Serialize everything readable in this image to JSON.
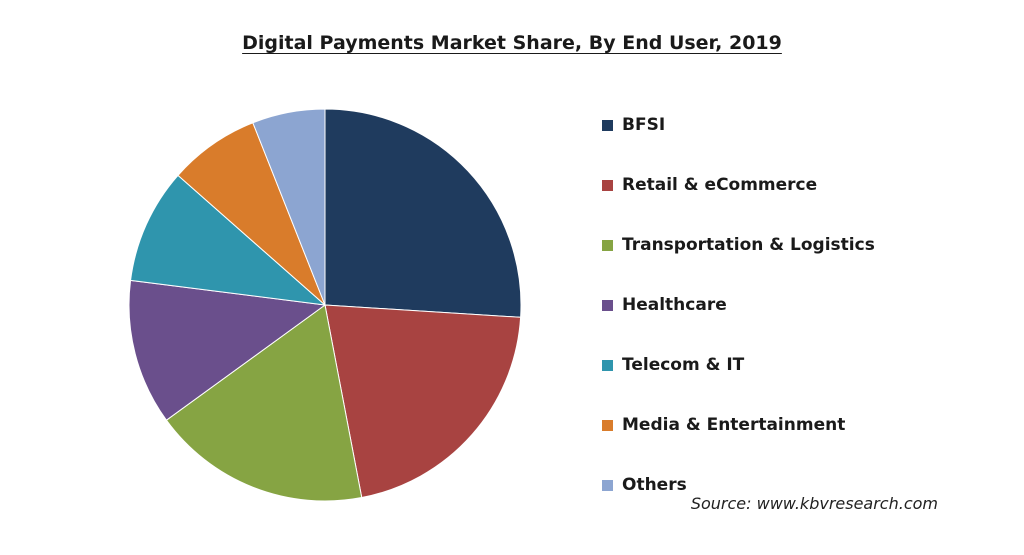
{
  "chart_data": {
    "type": "pie",
    "title": "Digital Payments Market Share, By End User, 2019",
    "legend_position": "right",
    "slices": [
      {
        "label": "BFSI",
        "value": 26,
        "color": "#1f3b5e"
      },
      {
        "label": "Retail & eCommerce",
        "value": 21,
        "color": "#a84341"
      },
      {
        "label": "Transportation & Logistics",
        "value": 18,
        "color": "#86a443"
      },
      {
        "label": "Healthcare",
        "value": 12,
        "color": "#6a4f8c"
      },
      {
        "label": "Telecom & IT",
        "value": 9.5,
        "color": "#2f95ad"
      },
      {
        "label": "Media & Entertainment",
        "value": 7.5,
        "color": "#d97c2b"
      },
      {
        "label": "Others",
        "value": 6,
        "color": "#8ca5d1"
      }
    ]
  },
  "source": "Source: www.kbvresearch.com"
}
